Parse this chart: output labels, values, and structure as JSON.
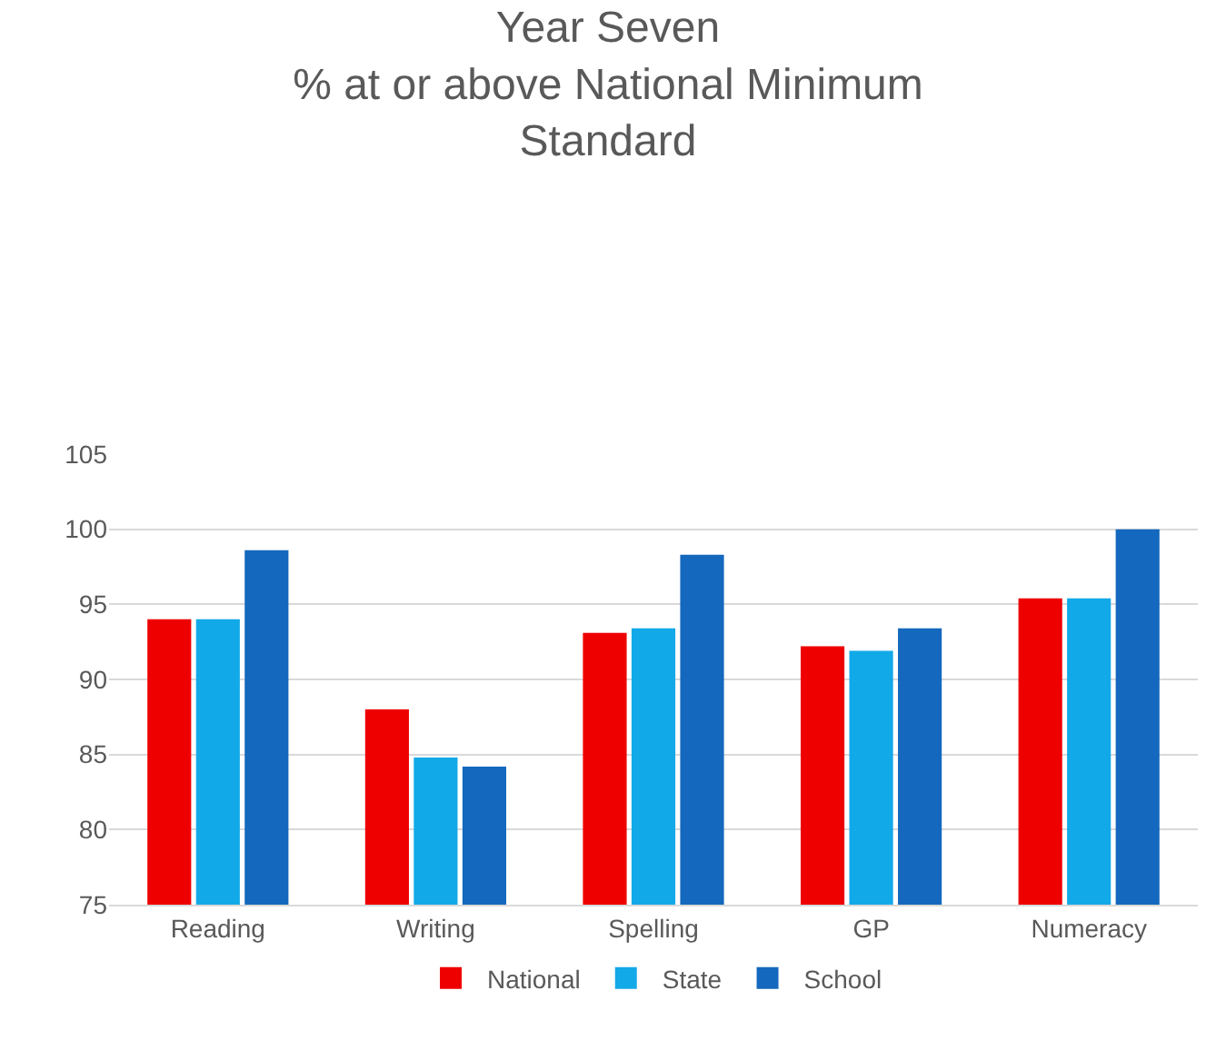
{
  "chart_data": {
    "type": "bar",
    "title": "Year Seven\n% at or above National Minimum\nStandard",
    "categories": [
      "Reading",
      "Writing",
      "Spelling",
      "GP",
      "Numeracy"
    ],
    "series": [
      {
        "name": "National",
        "color": "#ee0000",
        "values": [
          94,
          88,
          93.1,
          92.2,
          95.4
        ]
      },
      {
        "name": "State",
        "color": "#12a9e8",
        "values": [
          94,
          84.8,
          93.4,
          91.9,
          95.4
        ]
      },
      {
        "name": "School",
        "color": "#1468bd",
        "values": [
          98.6,
          84.2,
          98.3,
          93.4,
          100
        ]
      }
    ],
    "ylim": [
      75,
      105
    ],
    "yticks": [
      75,
      80,
      85,
      90,
      95,
      100,
      105
    ],
    "grid": "y",
    "legend": "bottom"
  }
}
